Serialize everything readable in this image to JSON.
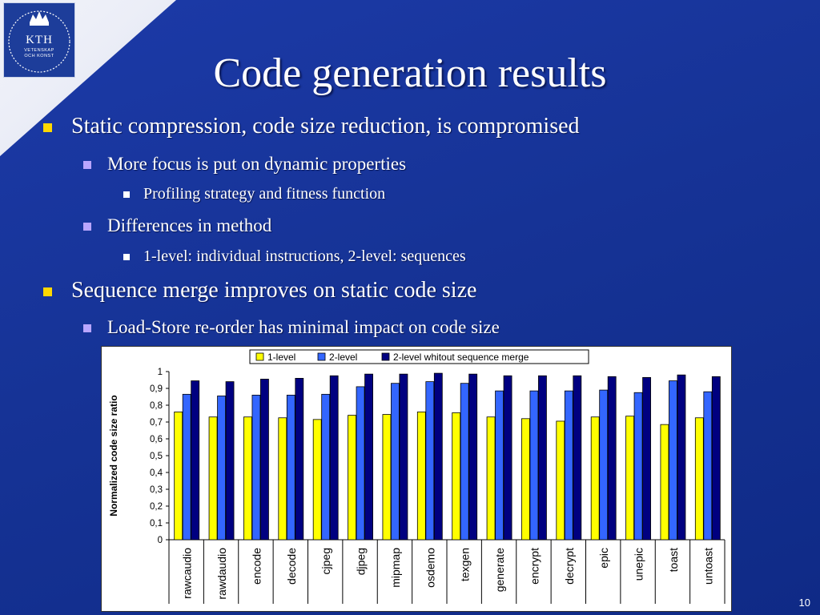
{
  "slide": {
    "title": "Code generation results",
    "page_number": "10",
    "logo": {
      "name": "KTH",
      "line1": "VETENSKAP",
      "line2": "OCH KONST"
    }
  },
  "bullets": [
    {
      "level": 1,
      "text": "Static compression, code size reduction, is compromised"
    },
    {
      "level": 2,
      "text": "More focus is put on dynamic properties"
    },
    {
      "level": 3,
      "text": "Profiling strategy and fitness function"
    },
    {
      "level": 2,
      "text": "Differences in method"
    },
    {
      "level": 3,
      "text": "1-level: individual instructions, 2-level: sequences"
    },
    {
      "level": 1,
      "text": "Sequence merge improves on static code size"
    },
    {
      "level": 2,
      "text": "Load-Store re-order has minimal impact on code size"
    }
  ],
  "colors": {
    "background": "#163396",
    "bullet_level1": "#ffd800",
    "bullet_level2": "#b9a6ff",
    "bullet_level3": "#ffffff"
  },
  "chart_data": {
    "type": "bar",
    "ylabel": "Normalized code size ratio",
    "ylim": [
      0,
      1
    ],
    "yticks": [
      "0",
      "0,1",
      "0,2",
      "0,3",
      "0,4",
      "0,5",
      "0,6",
      "0,7",
      "0,8",
      "0,9",
      "1"
    ],
    "legend_position": "top",
    "grid": false,
    "categories": [
      "rawcaudio",
      "rawdaudio",
      "encode",
      "decode",
      "cjpeg",
      "djpeg",
      "mipmap",
      "osdemo",
      "texgen",
      "generate",
      "encrypt",
      "decrypt",
      "epic",
      "unepic",
      "toast",
      "untoast"
    ],
    "series": [
      {
        "name": "1-level",
        "color": "#ffff00",
        "values": [
          0.76,
          0.73,
          0.73,
          0.725,
          0.715,
          0.74,
          0.745,
          0.76,
          0.755,
          0.73,
          0.72,
          0.705,
          0.73,
          0.735,
          0.685,
          0.725
        ]
      },
      {
        "name": "2-level",
        "color": "#3366ff",
        "values": [
          0.865,
          0.855,
          0.86,
          0.86,
          0.865,
          0.91,
          0.93,
          0.94,
          0.93,
          0.885,
          0.885,
          0.885,
          0.89,
          0.875,
          0.945,
          0.88
        ]
      },
      {
        "name": "2-level whitout sequence merge",
        "color": "#000080",
        "values": [
          0.945,
          0.94,
          0.955,
          0.96,
          0.975,
          0.985,
          0.985,
          0.99,
          0.985,
          0.975,
          0.975,
          0.975,
          0.97,
          0.965,
          0.98,
          0.97
        ]
      }
    ]
  }
}
